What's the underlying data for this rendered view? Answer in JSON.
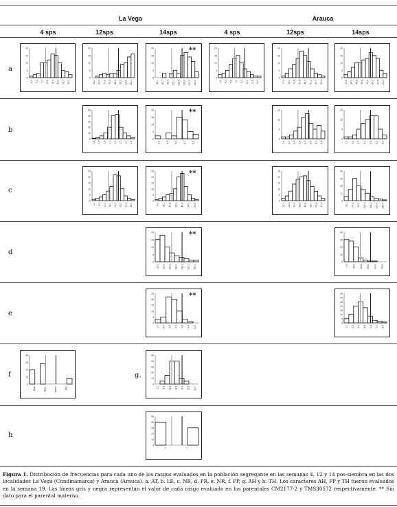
{
  "header": {
    "site1": "La Vega",
    "site2": "Arauca",
    "weeks": [
      "4 sps",
      "12sps",
      "14sps",
      "4 sps",
      "12sps",
      "14sps"
    ]
  },
  "rows": [
    "a",
    "b",
    "c",
    "d",
    "e",
    "f",
    "g",
    "h"
  ],
  "markers": {
    "double_star": "**",
    "g_label": "g."
  },
  "caption": {
    "lead": "Figura 1.",
    "body": "Distribución de frecuencias para cada uno de los rasgos evaluados en la población segregante en las semanas 4, 12 y 14 pos-siembra en las dos localidades La Vega (Cundinamarca) y Arauca (Arauca). a. AT, b. LE, c. NB, d. PR, e. NR, f. PP, g. AH y h. TH. Los caracteres AH, PP y TH fueron evaluados en la semana 19. Las líneas gris y negra representan el valor de cada rasgo evaluado en los parentales CM2177-2 y TMS30572 respectivamente. ** Sin dato para el parental materno."
  },
  "chart_data": [
    {
      "id": "a-lv4",
      "type": "bar",
      "values": [
        1,
        2,
        3,
        10,
        10,
        12,
        16,
        15,
        10,
        5,
        4,
        2
      ],
      "ylim": [
        0,
        20
      ],
      "yticks": [
        "0",
        "5",
        "10",
        "15",
        "20"
      ],
      "xticks": [
        "6,7",
        "9,2",
        "7,3",
        "15,8",
        "18,4",
        "21,1",
        "23,7",
        "28,0"
      ]
    },
    {
      "id": "a-lv12",
      "type": "bar",
      "values": [
        0,
        1,
        2,
        3,
        2,
        3,
        3,
        5,
        9,
        10,
        14,
        16
      ],
      "ylim": [
        0,
        20
      ],
      "yticks": [
        "0",
        "5",
        "10",
        "15",
        "20"
      ],
      "xticks": [
        "55,0",
        "63,3",
        "71,6",
        "79,9",
        "88,2",
        "96,5",
        "104,8",
        "113,1"
      ]
    },
    {
      "id": "a-lv14",
      "type": "bar",
      "values": [
        0,
        0,
        3,
        0,
        3,
        5,
        3,
        15,
        17,
        14,
        11,
        4
      ],
      "ylim": [
        0,
        20
      ],
      "yticks": [
        "0",
        "5",
        "10",
        "15",
        "20"
      ],
      "xticks": [
        "68,0",
        "81,7",
        "95,4",
        "109,1",
        "122,8",
        "136,5",
        "150,2",
        "163,9"
      ],
      "star": true
    },
    {
      "id": "a-ar4",
      "type": "bar",
      "values": [
        2,
        3,
        5,
        9,
        13,
        15,
        10,
        6,
        4,
        2,
        1,
        1
      ],
      "ylim": [
        0,
        20
      ],
      "yticks": [
        "0",
        "5",
        "10",
        "15",
        "20"
      ],
      "xticks": [
        "2,9",
        "4,3",
        "5,8",
        "7,3",
        "8,7",
        "10,1",
        "11,6",
        "13,0"
      ]
    },
    {
      "id": "a-ar12",
      "type": "bar",
      "values": [
        1,
        3,
        6,
        9,
        13,
        18,
        15,
        11,
        6,
        3,
        2,
        1
      ],
      "ylim": [
        0,
        20
      ],
      "yticks": [
        "0",
        "5",
        "10",
        "15",
        "20"
      ],
      "xticks": [
        "17,3",
        "24,0",
        "30,8",
        "37,5",
        "44,2",
        "51,0",
        "57,7",
        "64,4"
      ]
    },
    {
      "id": "a-ar14",
      "type": "bar",
      "values": [
        2,
        4,
        7,
        10,
        10,
        12,
        13,
        17,
        15,
        13,
        5,
        3
      ],
      "ylim": [
        0,
        20
      ],
      "yticks": [
        "0",
        "5",
        "10",
        "15",
        "20"
      ],
      "xticks": [
        "21,6",
        "34,3",
        "46,9",
        "59,6",
        "72,2",
        "84,9",
        "97,5",
        "110,2"
      ]
    },
    {
      "id": "b-lv12",
      "type": "bar",
      "values": [
        1,
        2,
        5,
        10,
        20,
        40,
        42,
        20,
        10,
        5,
        2
      ],
      "ylim": [
        0,
        50
      ],
      "yticks": [
        "0",
        "10",
        "20",
        "30",
        "40",
        "50"
      ],
      "xticks": [
        "0,5",
        "0,7",
        "0,9",
        "1,1",
        "1,3",
        "1,5",
        "1,7",
        "1,9"
      ]
    },
    {
      "id": "b-lv14",
      "type": "bar",
      "values": [
        2,
        0,
        4,
        2,
        15,
        13,
        5,
        3
      ],
      "ylim": [
        0,
        20
      ],
      "yticks": [
        "0",
        "5",
        "10",
        "15",
        "20"
      ],
      "xticks": [
        "3,6",
        "4,4",
        "5,2",
        "6,0",
        "6,8"
      ],
      "star": true
    },
    {
      "id": "b-ar12",
      "type": "bar",
      "values": [
        1,
        1,
        2,
        4,
        6,
        11,
        13,
        8,
        5,
        7,
        4
      ],
      "ylim": [
        0,
        15
      ],
      "yticks": [
        "0",
        "5",
        "10",
        "15"
      ],
      "xticks": [
        "1,6",
        "2,0",
        "2,4",
        "2,8",
        "3,2",
        "3,6",
        "4,0",
        "4,4"
      ]
    },
    {
      "id": "b-ar14",
      "type": "bar",
      "values": [
        1,
        1,
        2,
        5,
        8,
        10,
        12,
        12,
        5,
        2
      ],
      "ylim": [
        0,
        15
      ],
      "yticks": [
        "0",
        "5",
        "10",
        "15"
      ],
      "xticks": [
        "1,9",
        "2,3",
        "2,7",
        "3,1",
        "3,5",
        "3,9",
        "4,3"
      ]
    },
    {
      "id": "c-lv12",
      "type": "bar",
      "values": [
        1,
        2,
        3,
        5,
        8,
        12,
        22,
        21,
        10,
        4,
        2,
        1
      ],
      "ylim": [
        0,
        25
      ],
      "yticks": [
        "0",
        "5",
        "10",
        "15",
        "20",
        "25"
      ],
      "xticks": [
        "1,0",
        "6,0",
        "11,0",
        "16,0",
        "21,0",
        "26,0",
        "31,0",
        "36,0"
      ]
    },
    {
      "id": "c-lv14",
      "type": "bar",
      "values": [
        1,
        2,
        3,
        5,
        6,
        10,
        20,
        23,
        12,
        5,
        2,
        1
      ],
      "ylim": [
        0,
        25
      ],
      "yticks": [
        "0",
        "5",
        "10",
        "15",
        "20",
        "25"
      ],
      "xticks": [
        "9,0",
        "18,1",
        "27,2",
        "36,3",
        "45,4",
        "54,5",
        "63,6"
      ],
      "star": true
    },
    {
      "id": "c-ar12",
      "type": "bar",
      "values": [
        2,
        4,
        8,
        14,
        18,
        20,
        21,
        17,
        12,
        8,
        4,
        2
      ],
      "ylim": [
        0,
        25
      ],
      "yticks": [
        "0",
        "5",
        "10",
        "15",
        "20",
        "25"
      ],
      "xticks": [
        "14,1",
        "22,3",
        "30,4",
        "38,6",
        "46,8",
        "55,0",
        "63,2",
        "71,4"
      ]
    },
    {
      "id": "c-ar14",
      "type": "bar",
      "values": [
        5,
        15,
        30,
        20,
        15,
        10,
        5,
        3,
        2,
        1
      ],
      "ylim": [
        0,
        40
      ],
      "yticks": [
        "0",
        "10",
        "20",
        "30",
        "40"
      ],
      "xticks": [
        "18,1",
        "55,2",
        "92,3",
        "129,4",
        "166,5",
        "203,6",
        "240,7"
      ]
    },
    {
      "id": "d-lv14",
      "type": "bar",
      "values": [
        15,
        18,
        10,
        6,
        4,
        3,
        2,
        1,
        1
      ],
      "ylim": [
        0,
        20
      ],
      "yticks": [
        "0",
        "5",
        "10",
        "15",
        "20"
      ],
      "xticks": [
        "30,0",
        "130,0",
        "230,0",
        "330,0",
        "430,0",
        "530,0",
        "630,0"
      ],
      "star": true
    },
    {
      "id": "d-ar14",
      "type": "bar",
      "values": [
        30,
        28,
        20,
        5,
        2,
        1,
        1,
        0,
        0
      ],
      "ylim": [
        0,
        40
      ],
      "yticks": [
        "0",
        "10",
        "20",
        "30",
        "40"
      ],
      "xticks": [
        "0,0",
        "1500",
        "3000",
        "4500",
        "6000",
        "7500"
      ]
    },
    {
      "id": "e-lv14",
      "type": "bar",
      "values": [
        3,
        5,
        22,
        20,
        10,
        3,
        1,
        0
      ],
      "ylim": [
        0,
        25
      ],
      "yticks": [
        "0",
        "5",
        "10",
        "15",
        "20",
        "25"
      ],
      "xticks": [
        "1,0",
        "2,7",
        "4,4",
        "6,1",
        "7,8",
        "9,5",
        "11,2"
      ],
      "star": true
    },
    {
      "id": "e-ar14",
      "type": "bar",
      "values": [
        5,
        10,
        20,
        25,
        18,
        8,
        3,
        2,
        1
      ],
      "ylim": [
        0,
        35
      ],
      "yticks": [
        "0",
        "5",
        "10",
        "15",
        "20",
        "25",
        "30",
        "35"
      ],
      "xticks": [
        "1,0",
        "2,2",
        "3,4",
        "4,6",
        "5,8",
        "7,0",
        "8,2"
      ]
    },
    {
      "id": "f-lv",
      "type": "bar",
      "values": [
        20,
        0,
        28,
        0,
        0,
        0,
        0,
        8
      ],
      "ylim": [
        0,
        40
      ],
      "yticks": [
        "0",
        "10",
        "20",
        "30",
        "40"
      ],
      "xticks": [
        "Bajo",
        "Bajo-",
        "Medio",
        "Alto"
      ]
    },
    {
      "id": "g-lv",
      "type": "bar",
      "values": [
        0,
        5,
        15,
        40,
        40,
        10,
        5,
        0,
        0
      ],
      "ylim": [
        0,
        50
      ],
      "yticks": [
        "0",
        "10",
        "20",
        "30",
        "40",
        "50"
      ],
      "xticks": [
        "7,0",
        "9,5",
        "12,0",
        "14,5",
        "17,0",
        "19,5",
        "22,0"
      ]
    },
    {
      "id": "h-lv",
      "type": "bar",
      "values": [
        40,
        0,
        0,
        30
      ],
      "ylim": [
        0,
        50
      ],
      "yticks": [
        "0",
        "10",
        "20",
        "30",
        "40",
        "50"
      ],
      "xticks": [
        "0",
        "1"
      ]
    }
  ]
}
